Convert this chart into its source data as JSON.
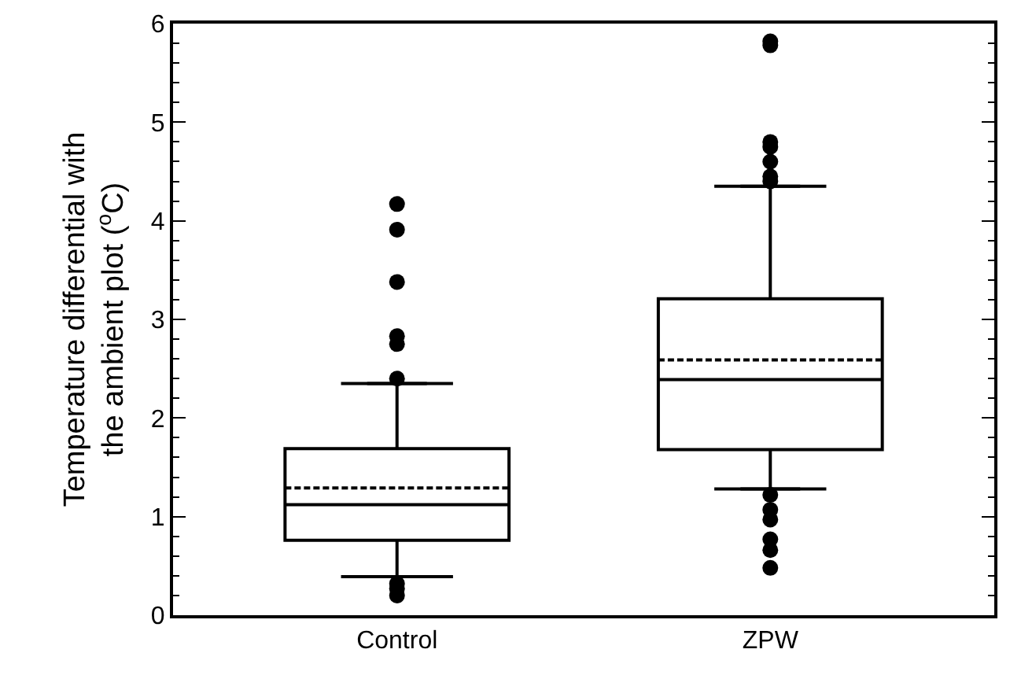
{
  "chart_data": {
    "type": "box",
    "ylabel": "Temperature differential with the ambient plot ($^{o}$C)",
    "categories": [
      "Control",
      "ZPW"
    ],
    "boxes": [
      {
        "low": 0.39,
        "q1": 0.76,
        "median": 1.12,
        "q3": 1.69,
        "high": 2.35,
        "mean": 1.29,
        "outliers": [
          0.2,
          0.27,
          0.32,
          2.4,
          2.75,
          2.83,
          3.38,
          3.91,
          4.17
        ]
      },
      {
        "low": 1.28,
        "q1": 1.68,
        "median": 2.39,
        "q3": 3.21,
        "high": 4.35,
        "mean": 2.59,
        "outliers": [
          0.48,
          0.66,
          0.77,
          0.97,
          1.07,
          1.22,
          4.4,
          4.45,
          4.6,
          4.75,
          4.8,
          5.78,
          5.82
        ]
      }
    ],
    "color": "#000000",
    "ylim": [
      0,
      6
    ],
    "yticks": [
      0,
      1,
      2,
      3,
      4,
      5,
      6
    ],
    "marker": "circle"
  }
}
